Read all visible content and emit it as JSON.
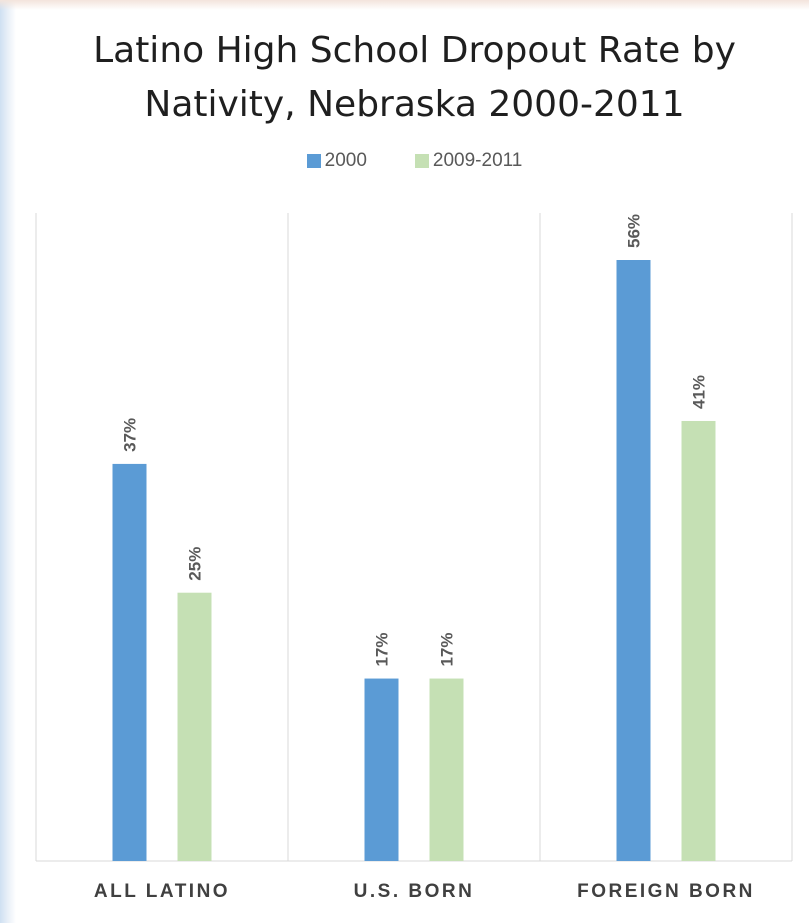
{
  "chart_data": {
    "type": "bar",
    "title_line1": "Latino High School Dropout Rate by",
    "title_line2": "Nativity, Nebraska 2000-2011",
    "categories": [
      "ALL LATINO",
      "U.S. BORN",
      "FOREIGN BORN"
    ],
    "series": [
      {
        "name": "2000",
        "values": [
          37,
          17,
          56
        ],
        "labels": [
          "37%",
          "17%",
          "56%"
        ],
        "color": "#5b9bd5"
      },
      {
        "name": "2009-2011",
        "values": [
          25,
          17,
          41
        ],
        "labels": [
          "25%",
          "17%",
          "41%"
        ],
        "color": "#c5e0b4"
      }
    ],
    "ylim": [
      0,
      60
    ],
    "grid": "vertical category separators",
    "legend_position": "top-center"
  }
}
